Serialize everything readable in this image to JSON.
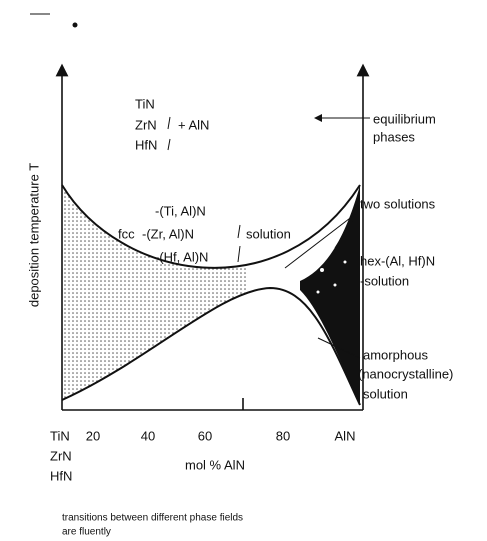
{
  "y_axis_label": "deposition temperature T",
  "x_axis": {
    "left_labels": [
      "TiN",
      "ZrN",
      "HfN"
    ],
    "ticks": [
      "20",
      "40",
      "60",
      "80"
    ],
    "right_label": "AlN",
    "title": "mol % AlN"
  },
  "equilibrium": {
    "left": [
      "TiN",
      "ZrN",
      "HfN"
    ],
    "plus": "+ AlN",
    "arrow_label": [
      "equilibrium",
      "phases"
    ]
  },
  "fcc": {
    "prefix": "fcc",
    "lines": [
      "-(Ti, Al)N",
      "-(Zr, Al)N",
      "-(Hf, Al)N"
    ],
    "suffix": "solution"
  },
  "annotations": {
    "two": "two solutions",
    "hex": [
      "hex-(Al, Hf)N",
      "-solution"
    ],
    "amorphous": [
      "amorphous",
      "(nanocrystalline)",
      "solution"
    ]
  },
  "footnote": [
    "transitions between different phase fields",
    "are fluently"
  ]
}
